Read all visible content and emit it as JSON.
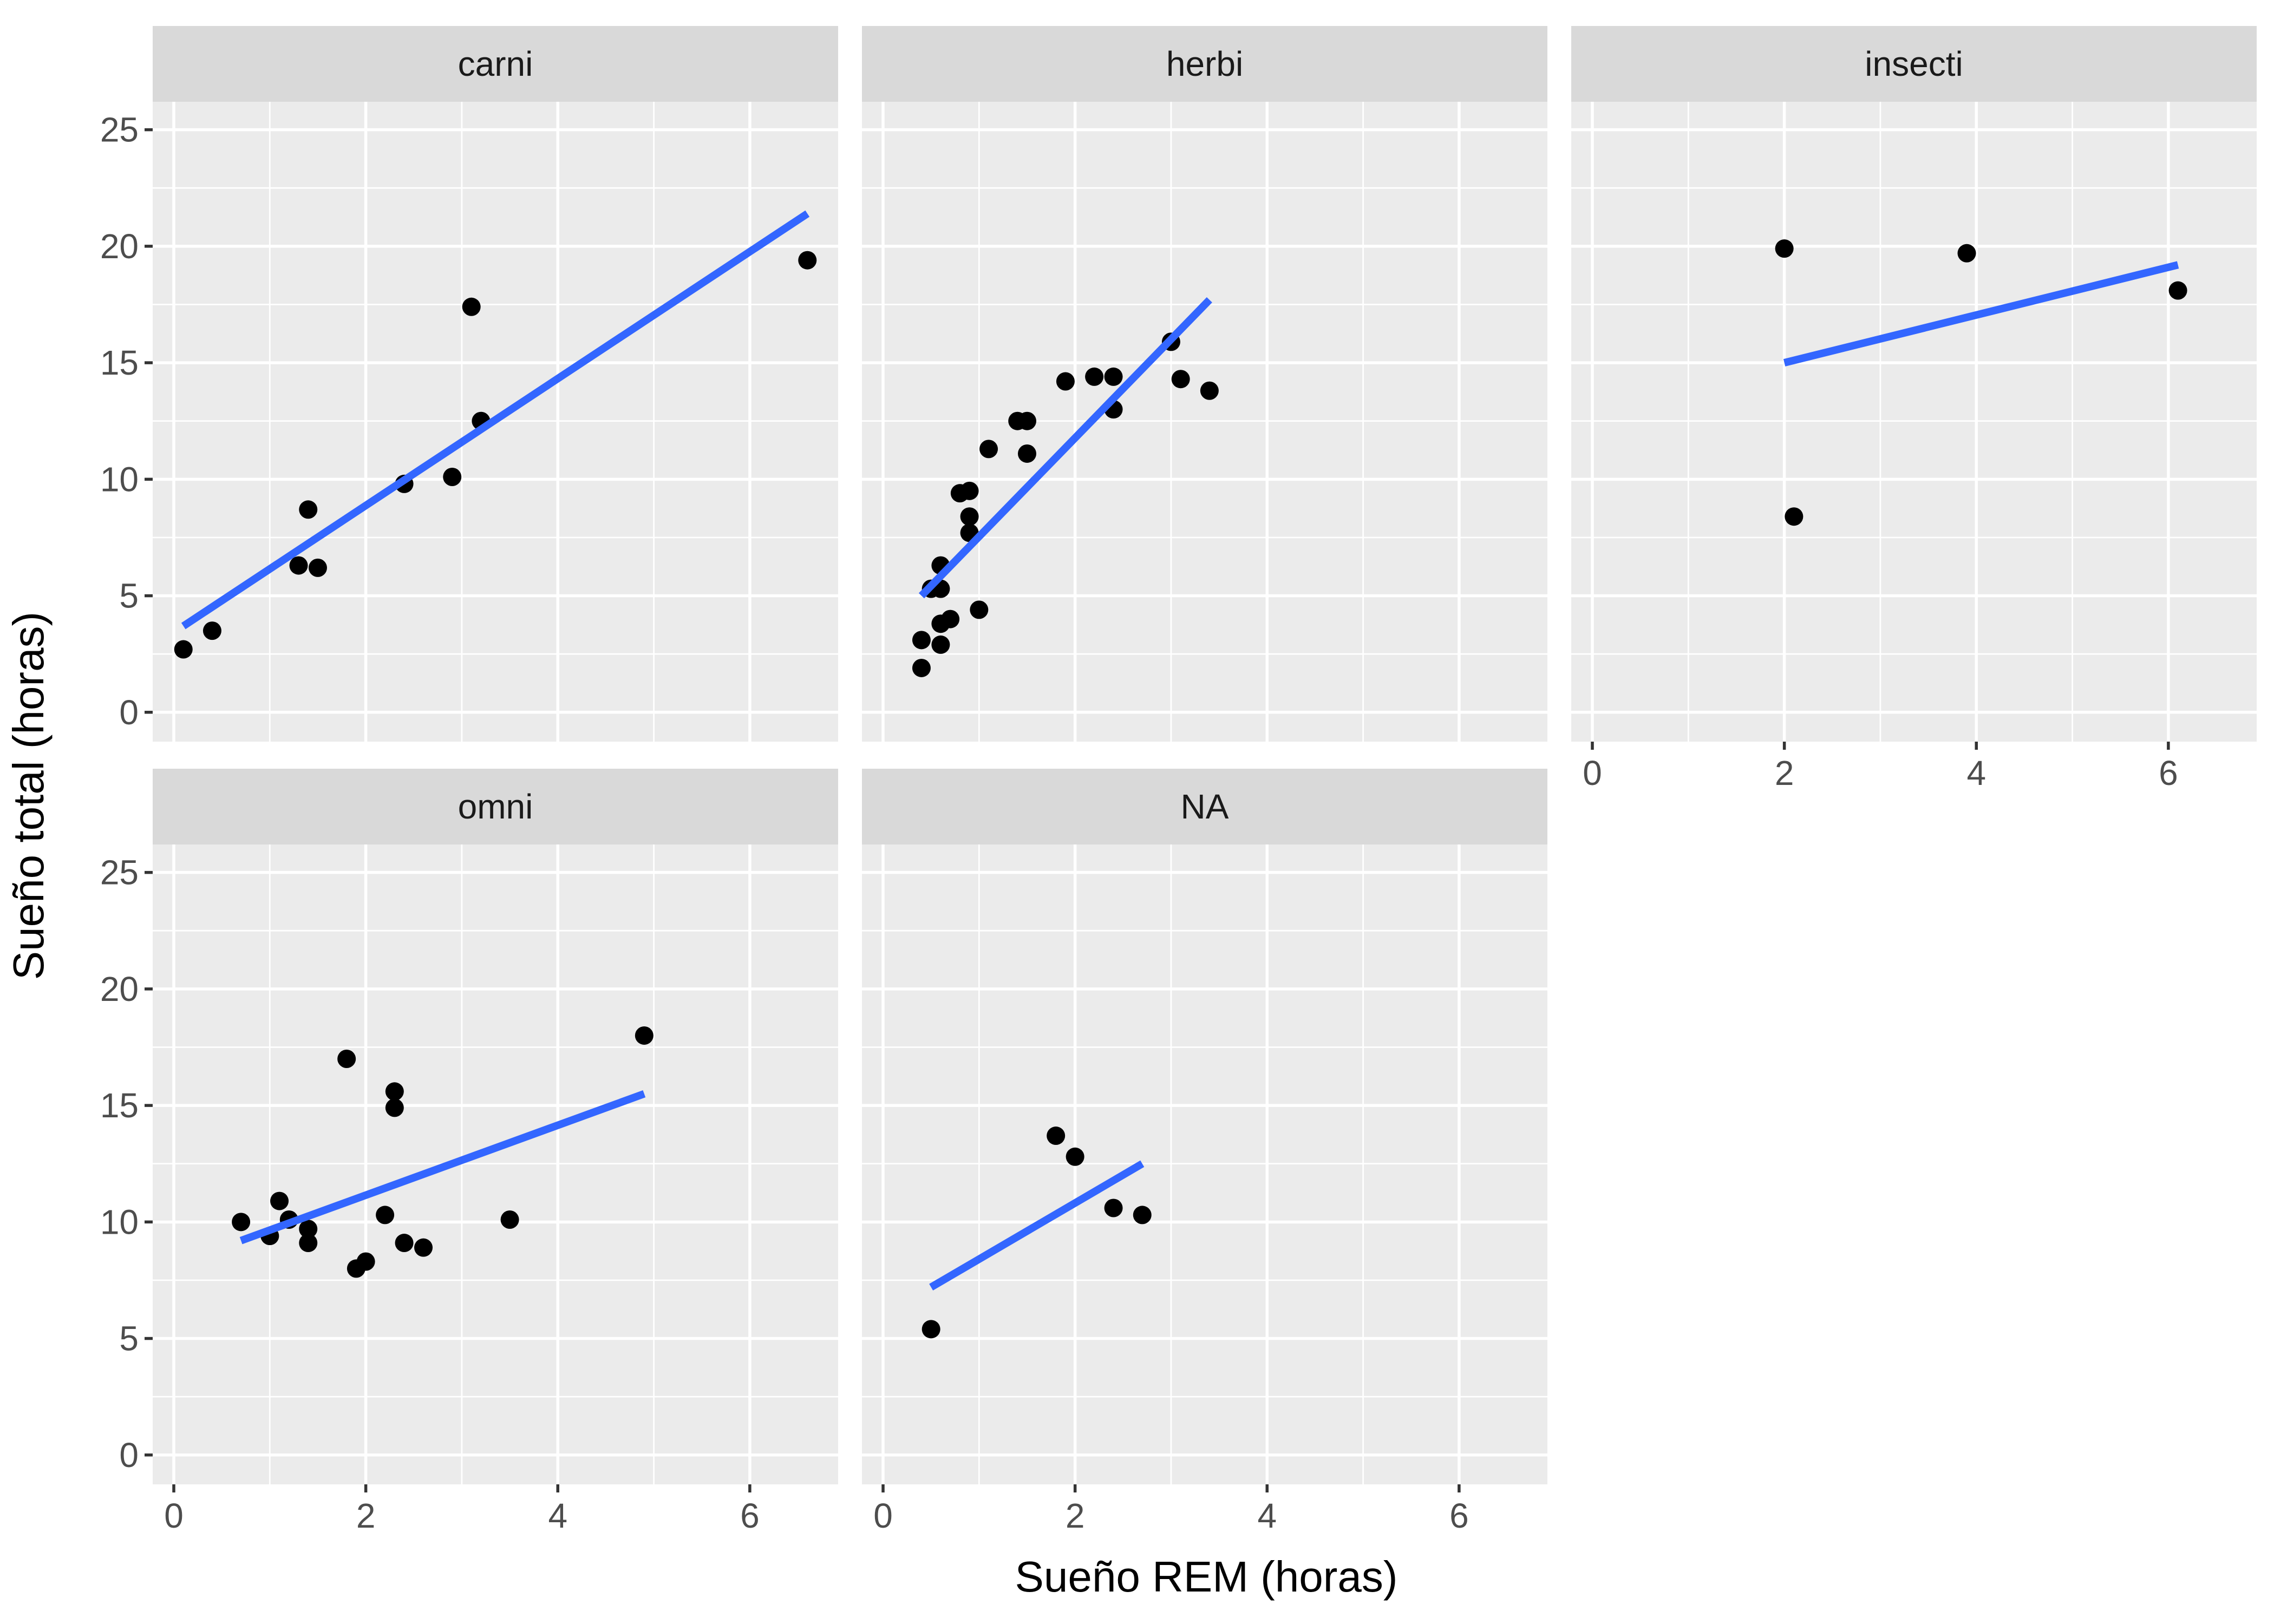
{
  "chart_data": {
    "type": "scatter",
    "facet_by": "vore",
    "xlabel": "Sueño REM (horas)",
    "ylabel": "Sueño total (horas)",
    "xlim": [
      -0.22,
      6.92
    ],
    "ylim": [
      -1.26,
      26.2
    ],
    "x_ticks": [
      0,
      2,
      4,
      6
    ],
    "y_ticks": [
      0,
      5,
      10,
      15,
      20,
      25
    ],
    "panels": [
      {
        "label": "carni",
        "points": [
          [
            0.1,
            2.7
          ],
          [
            0.4,
            3.5
          ],
          [
            1.3,
            6.3
          ],
          [
            1.4,
            8.7
          ],
          [
            1.5,
            6.2
          ],
          [
            2.4,
            9.8
          ],
          [
            2.9,
            10.1
          ],
          [
            3.1,
            17.4
          ],
          [
            3.2,
            12.5
          ],
          [
            6.6,
            19.4
          ]
        ],
        "fit": [
          [
            0.1,
            3.7
          ],
          [
            6.6,
            21.4
          ]
        ]
      },
      {
        "label": "herbi",
        "points": [
          [
            0.4,
            1.9
          ],
          [
            0.4,
            3.1
          ],
          [
            0.5,
            5.3
          ],
          [
            0.6,
            2.9
          ],
          [
            0.6,
            3.8
          ],
          [
            0.6,
            5.3
          ],
          [
            0.6,
            6.3
          ],
          [
            0.7,
            4.0
          ],
          [
            0.8,
            9.4
          ],
          [
            0.9,
            7.7
          ],
          [
            0.9,
            8.4
          ],
          [
            0.9,
            9.5
          ],
          [
            1.0,
            4.4
          ],
          [
            1.1,
            11.3
          ],
          [
            1.4,
            12.5
          ],
          [
            1.5,
            11.1
          ],
          [
            1.5,
            12.5
          ],
          [
            1.9,
            14.2
          ],
          [
            2.2,
            14.4
          ],
          [
            2.4,
            13.0
          ],
          [
            2.4,
            14.4
          ],
          [
            3.0,
            15.9
          ],
          [
            3.1,
            14.3
          ],
          [
            3.4,
            13.8
          ]
        ],
        "fit": [
          [
            0.4,
            5.0
          ],
          [
            3.4,
            17.7
          ]
        ]
      },
      {
        "label": "insecti",
        "points": [
          [
            2.0,
            19.9
          ],
          [
            2.1,
            8.4
          ],
          [
            3.9,
            19.7
          ],
          [
            6.1,
            18.1
          ]
        ],
        "fit": [
          [
            2.0,
            15.0
          ],
          [
            6.1,
            19.2
          ]
        ]
      },
      {
        "label": "omni",
        "points": [
          [
            0.7,
            10.0
          ],
          [
            1.0,
            9.4
          ],
          [
            1.1,
            10.9
          ],
          [
            1.2,
            10.1
          ],
          [
            1.4,
            9.7
          ],
          [
            1.4,
            9.1
          ],
          [
            1.8,
            17.0
          ],
          [
            1.9,
            8.0
          ],
          [
            2.0,
            8.3
          ],
          [
            2.2,
            10.3
          ],
          [
            2.3,
            15.6
          ],
          [
            2.3,
            14.9
          ],
          [
            2.4,
            9.1
          ],
          [
            2.6,
            8.9
          ],
          [
            3.5,
            10.1
          ],
          [
            4.9,
            18.0
          ]
        ],
        "fit": [
          [
            0.7,
            9.2
          ],
          [
            4.9,
            15.5
          ]
        ]
      },
      {
        "label": "NA",
        "points": [
          [
            0.5,
            5.4
          ],
          [
            1.8,
            13.7
          ],
          [
            2.0,
            12.8
          ],
          [
            2.4,
            10.6
          ],
          [
            2.7,
            10.3
          ]
        ],
        "fit": [
          [
            0.5,
            7.2
          ],
          [
            2.7,
            12.5
          ]
        ]
      }
    ]
  },
  "colors": {
    "panel_background": "#EBEBEB",
    "strip_background": "#D9D9D9",
    "point": "#000000",
    "fit_line": "#3366FF"
  }
}
